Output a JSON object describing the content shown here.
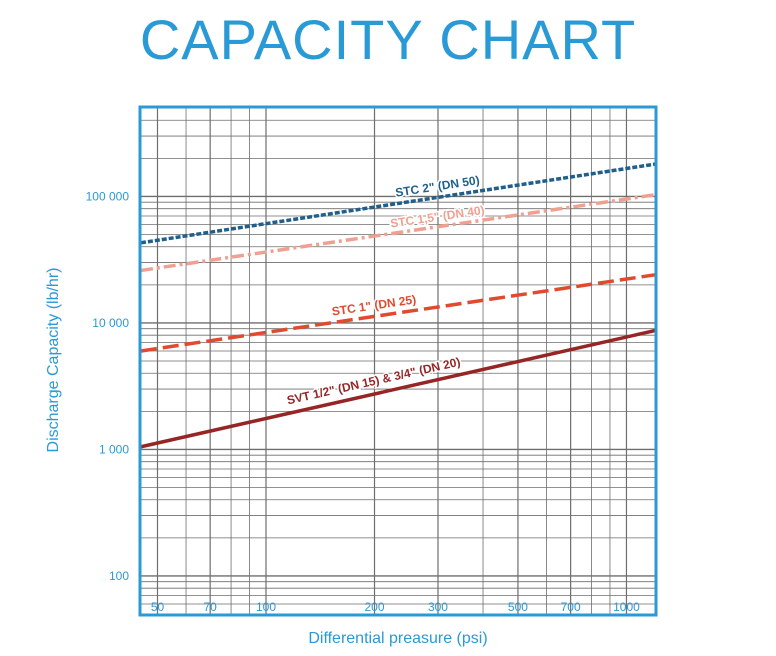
{
  "chart_data": {
    "type": "line",
    "title": "CAPACITY CHART",
    "xlabel": "Differential preasure (psi)",
    "ylabel": "Discharge Capacity (lb/hr)",
    "x_scale": "log",
    "y_scale": "log",
    "xlim": [
      45,
      1200
    ],
    "ylim": [
      50,
      500000
    ],
    "x_ticks": [
      50,
      70,
      100,
      200,
      300,
      500,
      700,
      1000
    ],
    "x_tick_labels": [
      "50",
      "70",
      "100",
      "200",
      "300",
      "500",
      "700",
      "1000"
    ],
    "y_ticks": [
      100,
      1000,
      10000,
      100000
    ],
    "y_tick_labels": [
      "100",
      "1 000",
      "10 000",
      "100 000"
    ],
    "grid": true,
    "colors": {
      "accent": "#2a9ad6",
      "grid": "#6e6e6e",
      "frame": "#2a9ad6"
    },
    "series": [
      {
        "name": "STC 2\" (DN 50)",
        "color": "#1f5f8b",
        "dash": "dotted",
        "x": [
          45,
          1200
        ],
        "y": [
          43000,
          180000
        ]
      },
      {
        "name": "STC 1,5\" (DN 40)",
        "color": "#f0a090",
        "dash": "dashdot",
        "x": [
          45,
          1200
        ],
        "y": [
          26000,
          103000
        ]
      },
      {
        "name": "STC 1\" (DN 25)",
        "color": "#e04a2e",
        "dash": "dashed",
        "x": [
          45,
          1200
        ],
        "y": [
          6000,
          24000
        ]
      },
      {
        "name": "SVT 1/2\" (DN 15) & 3/4\" (DN 20)",
        "color": "#962626",
        "dash": "solid",
        "x": [
          45,
          1200
        ],
        "y": [
          1050,
          8700
        ]
      }
    ]
  }
}
